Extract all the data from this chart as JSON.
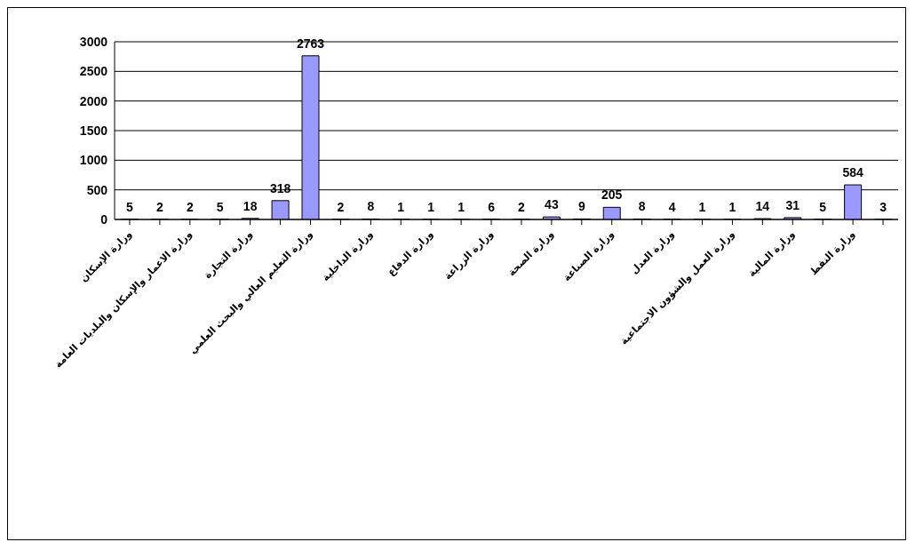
{
  "chart_data": {
    "type": "bar",
    "categories": [
      "وزارة الإسكان",
      null,
      "وزارة الاعمار والإسكان والبلديات العامة",
      null,
      "وزارة التجارة",
      null,
      "وزارة التعليم العالي والبحث العلمي",
      null,
      "وزارة الداخلية",
      null,
      "وزارة الدفاع",
      null,
      "وزارة الزراعة",
      null,
      "وزارة الصحة",
      null,
      "وزارة الصناعة",
      null,
      "وزارة العدل",
      null,
      "وزارة العمل والشؤون الاجتماعية",
      null,
      "وزارة المالية",
      null,
      "وزارة النفط",
      null
    ],
    "values": [
      5,
      2,
      2,
      5,
      18,
      318,
      2763,
      2,
      8,
      1,
      1,
      1,
      6,
      2,
      43,
      9,
      205,
      8,
      4,
      1,
      1,
      14,
      31,
      5,
      584,
      3
    ],
    "color": "#9999ff",
    "ylim": [
      0,
      3000
    ],
    "yticks": [
      0,
      500,
      1000,
      1500,
      2000,
      2500,
      3000
    ],
    "grid": "y",
    "data_labels": true
  }
}
